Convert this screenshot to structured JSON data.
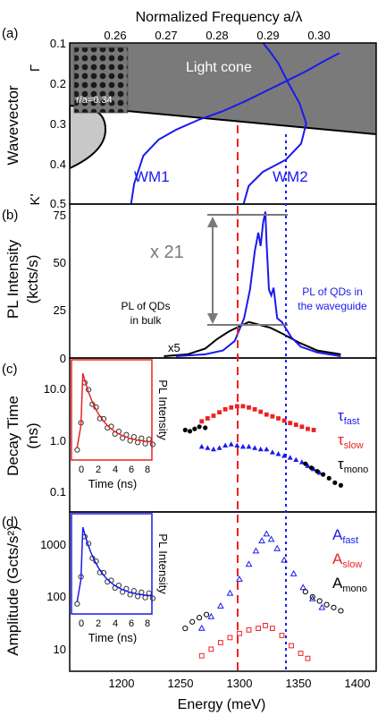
{
  "figure": {
    "top_axis_label": "Normalized Frequency a/λ",
    "top_axis_ticks": [
      "0.26",
      "0.27",
      "0.28",
      "0.29",
      "0.30"
    ],
    "bottom_axis_label": "Energy (meV)",
    "bottom_axis_ticks": [
      "1200",
      "1250",
      "1300",
      "1350",
      "1400"
    ],
    "panel_labels": [
      "(a)",
      "(b)",
      "(c)",
      "(d)"
    ]
  },
  "panel_a": {
    "ylabel": "Wavevector",
    "y_ticks": [
      "0.1",
      "0.2",
      "0.3",
      "0.4",
      "0.5"
    ],
    "gamma_label": "Γ",
    "kprime_label": "K'",
    "light_cone_label": "Light cone",
    "inset_label": "r/a=0.34",
    "wm1_label": "WM1",
    "wm2_label": "WM2"
  },
  "panel_b": {
    "ylabel_line1": "PL Intensity",
    "ylabel_line2": "(kcts/s)",
    "y_ticks": [
      "0",
      "25",
      "50",
      "75"
    ],
    "factor_label": "x 21",
    "bulk_label_line1": "PL of QDs",
    "bulk_label_line2": "in bulk",
    "wg_label_line1": "PL of QDs in",
    "wg_label_line2": "the waveguide",
    "x5_label": "x5"
  },
  "panel_c": {
    "ylabel_line1": "Decay Time",
    "ylabel_line2": "(ns)",
    "y_ticks": [
      "0.1",
      "1.0",
      "10.0"
    ],
    "inset_xlabel": "Time (ns)",
    "inset_ticks": [
      "0",
      "2",
      "4",
      "6",
      "8"
    ],
    "inset_ylabel": "PL Intensity",
    "legend": [
      {
        "sym": "τ",
        "sub": "fast",
        "color": "#1a1aee"
      },
      {
        "sym": "τ",
        "sub": "slow",
        "color": "#ee1a1a"
      },
      {
        "sym": "τ",
        "sub": "mono",
        "color": "#000000"
      }
    ]
  },
  "panel_d": {
    "ylabel": "Amplitude (Gcts/s²)",
    "y_ticks": [
      "10",
      "100",
      "1000"
    ],
    "inset_xlabel": "Time (ns)",
    "inset_ticks": [
      "0",
      "2",
      "4",
      "6",
      "8"
    ],
    "inset_ylabel": "PL Intensity",
    "legend": [
      {
        "sym": "A",
        "sub": "fast",
        "color": "#1a1aee"
      },
      {
        "sym": "A",
        "sub": "slow",
        "color": "#ee1a1a"
      },
      {
        "sym": "A",
        "sub": "mono",
        "color": "#000000"
      }
    ]
  },
  "colors": {
    "blue": "#1a1aee",
    "red": "#ee2222",
    "black": "#000000",
    "light_cone": "#7a7a7a",
    "bulk_band": "#c8c8c8",
    "arrow": "#7a7a7a"
  },
  "chart_data": [
    {
      "type": "line",
      "panel": "a",
      "xlabel": "Normalized Frequency a/λ",
      "ylabel": "Wavevector",
      "xlim": [
        0.25,
        0.31
      ],
      "ylim": [
        0.5,
        0.1
      ],
      "series": [
        {
          "name": "WM1",
          "x": [
            0.2631,
            0.2637,
            0.2655,
            0.2685,
            0.272,
            0.2765,
            0.281,
            0.2855,
            0.2895,
            0.2935,
            0.2975,
            0.301,
            0.304
          ],
          "y": [
            0.5,
            0.45,
            0.38,
            0.34,
            0.315,
            0.29,
            0.27,
            0.245,
            0.22,
            0.195,
            0.17,
            0.145,
            0.125
          ]
        },
        {
          "name": "WM2",
          "x": [
            0.2852,
            0.2862,
            0.289,
            0.2935,
            0.2965,
            0.2975,
            0.2962,
            0.294,
            0.292,
            0.2903,
            0.289
          ],
          "y": [
            0.5,
            0.455,
            0.42,
            0.39,
            0.35,
            0.3,
            0.25,
            0.2,
            0.15,
            0.12,
            0.1
          ]
        }
      ]
    },
    {
      "type": "line",
      "panel": "b",
      "xlabel": "Energy (meV)",
      "ylabel": "PL Intensity (kcts/s)",
      "xlim": [
        1150,
        1410
      ],
      "ylim": [
        0,
        80
      ],
      "series": [
        {
          "name": "PL of QDs in the waveguide",
          "x": [
            1240,
            1265,
            1280,
            1290,
            1298,
            1303,
            1307,
            1310,
            1312,
            1314,
            1316,
            1317,
            1319,
            1321,
            1323,
            1326,
            1330,
            1338,
            1346,
            1360,
            1380
          ],
          "y": [
            0,
            1,
            3,
            8,
            20,
            35,
            55,
            65,
            58,
            70,
            76,
            60,
            35,
            32,
            36,
            20,
            18,
            10,
            5,
            2,
            0
          ]
        },
        {
          "name": "PL of QDs in bulk",
          "x": [
            1230,
            1250,
            1265,
            1275,
            1285,
            1295,
            1302,
            1308,
            1314,
            1320,
            1330,
            1345,
            1360,
            1380
          ],
          "y": [
            0,
            1,
            4,
            9,
            13,
            16,
            18,
            17,
            16,
            15,
            12,
            7,
            3,
            1
          ]
        }
      ]
    },
    {
      "type": "scatter",
      "panel": "c",
      "xlabel": "Energy (meV)",
      "ylabel": "Decay Time (ns)",
      "ylog": true,
      "xlim": [
        1150,
        1410
      ],
      "ylim": [
        0.1,
        20
      ],
      "series": [
        {
          "name": "τfast",
          "x": [
            1262,
            1267,
            1272,
            1277,
            1282,
            1287,
            1292,
            1297,
            1302,
            1307,
            1312,
            1317,
            1322,
            1327,
            1332,
            1337,
            1342,
            1347,
            1352,
            1357,
            1362
          ],
          "y": [
            0.9,
            0.85,
            0.8,
            0.85,
            0.95,
            1.0,
            0.95,
            0.9,
            0.9,
            0.85,
            0.8,
            0.8,
            0.7,
            0.65,
            0.6,
            0.55,
            0.5,
            0.45,
            0.38,
            0.33,
            0.28
          ]
        },
        {
          "name": "τslow",
          "x": [
            1262,
            1267,
            1272,
            1277,
            1282,
            1287,
            1292,
            1297,
            1302,
            1307,
            1312,
            1317,
            1322,
            1327,
            1332,
            1337,
            1342,
            1347,
            1352,
            1357
          ],
          "y": [
            2.8,
            3.2,
            3.6,
            4.2,
            4.8,
            5.2,
            5.5,
            5.5,
            5.2,
            4.8,
            4.3,
            3.8,
            3.5,
            3.2,
            2.9,
            2.6,
            2.4,
            2.2,
            2.0,
            1.9
          ]
        },
        {
          "name": "τmono",
          "x": [
            1248,
            1252,
            1256,
            1260,
            1265,
            1350,
            1355,
            1360,
            1365,
            1370,
            1375,
            1380
          ],
          "y": [
            1.9,
            1.8,
            2.0,
            2.2,
            2.1,
            0.42,
            0.35,
            0.3,
            0.26,
            0.22,
            0.18,
            0.16
          ]
        }
      ]
    },
    {
      "type": "scatter",
      "panel": "d",
      "xlabel": "Energy (meV)",
      "ylabel": "Amplitude (Gcts/s²)",
      "ylog": true,
      "xlim": [
        1150,
        1410
      ],
      "ylim": [
        5,
        3000
      ],
      "series": [
        {
          "name": "Afast",
          "x": [
            1262,
            1270,
            1278,
            1286,
            1294,
            1302,
            1308,
            1313,
            1317,
            1321,
            1326,
            1332,
            1340,
            1348,
            1356,
            1364
          ],
          "y": [
            30,
            50,
            80,
            140,
            260,
            500,
            900,
            1400,
            1900,
            1500,
            1000,
            600,
            330,
            180,
            110,
            75
          ]
        },
        {
          "name": "Aslow",
          "x": [
            1262,
            1270,
            1278,
            1286,
            1294,
            1302,
            1310,
            1316,
            1322,
            1330,
            1338,
            1346,
            1352
          ],
          "y": [
            9,
            12,
            16,
            20,
            24,
            28,
            30,
            34,
            30,
            22,
            14,
            10,
            8
          ]
        },
        {
          "name": "Amono",
          "x": [
            1248,
            1254,
            1260,
            1266,
            1350,
            1356,
            1362,
            1368,
            1374,
            1380
          ],
          "y": [
            30,
            40,
            48,
            55,
            150,
            120,
            100,
            85,
            75,
            65
          ]
        }
      ]
    }
  ]
}
